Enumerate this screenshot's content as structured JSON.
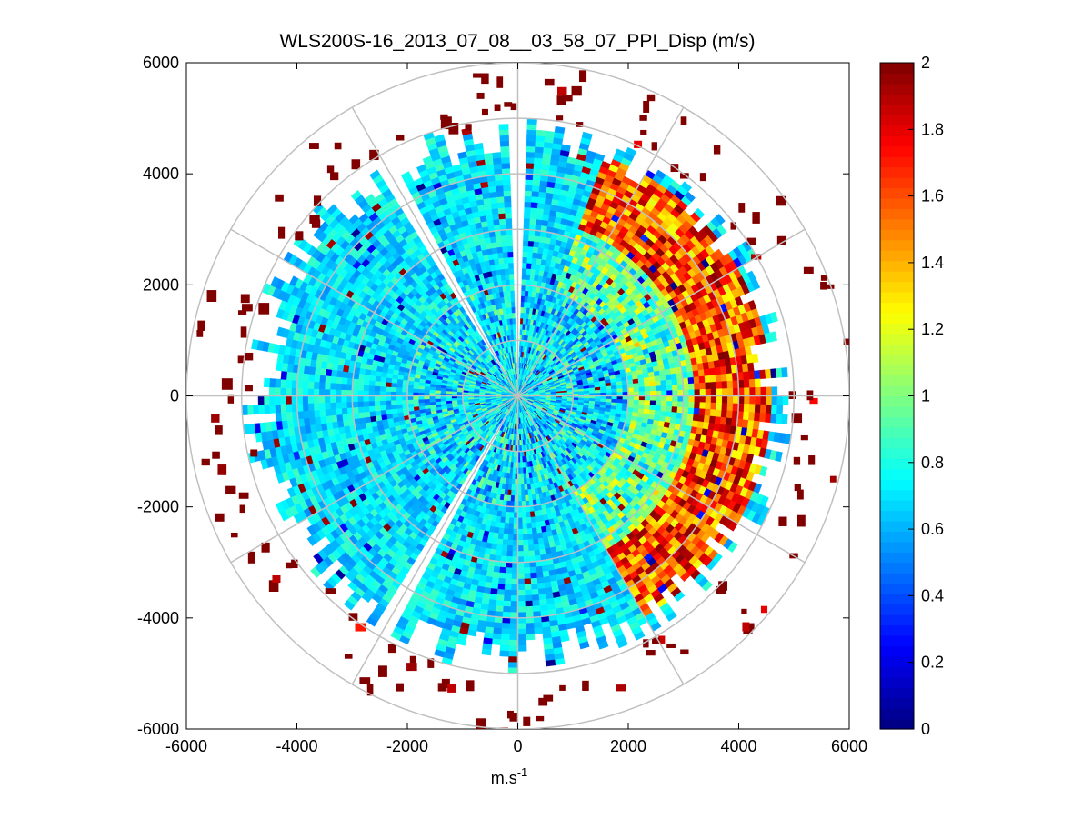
{
  "chart_data": {
    "type": "heatmap",
    "subtype": "polar-ppi",
    "title": "WLS200S-16_2013_07_08__03_58_07_PPI_Disp (m/s)",
    "xlabel": "m.s",
    "xlabel_superscript": "-1",
    "ylabel": "",
    "xlim": [
      -6000,
      6000
    ],
    "ylim": [
      -6000,
      6000
    ],
    "xticks": [
      -6000,
      -4000,
      -2000,
      0,
      2000,
      4000,
      6000
    ],
    "yticks": [
      -6000,
      -4000,
      -2000,
      0,
      2000,
      4000,
      6000
    ],
    "range_rings": [
      1000,
      2000,
      3000,
      4000,
      5000,
      6000
    ],
    "spoke_angles_deg": [
      0,
      30,
      60,
      90,
      120,
      150,
      180,
      210,
      240,
      270,
      300,
      330
    ],
    "data_extent_radius": 5000,
    "colorbar": {
      "min": 0,
      "max": 2,
      "ticks": [
        0,
        0.2,
        0.4,
        0.6,
        0.8,
        1,
        1.2,
        1.4,
        1.6,
        1.8,
        2
      ],
      "colormap": "jet"
    },
    "field_description": {
      "background_level": 0.7,
      "high_band_azimuth_deg": [
        20,
        150
      ],
      "high_band_range": [
        3200,
        4600
      ],
      "high_band_peak": 2.0,
      "gap_azimuths_deg": [
        0,
        210,
        330
      ]
    }
  }
}
